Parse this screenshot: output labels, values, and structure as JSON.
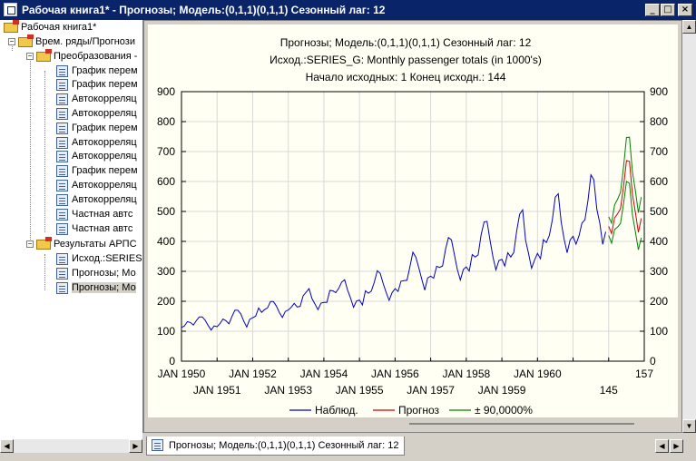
{
  "window": {
    "title": "Рабочая книга1* - Прогнозы; Модель:(0,1,1)(0,1,1) Сезонный лаг: 12",
    "min": "_",
    "max": "□",
    "close": "×"
  },
  "tree": {
    "root": "Рабочая книга1*",
    "group1": "Врем. ряды/Прогнози",
    "group2": "Преобразования -",
    "items": [
      "График перем",
      "График перем",
      "Автокорреляц",
      "Автокорреляц",
      "График перем",
      "Автокорреляц",
      "Автокорреляц",
      "График перем",
      "Автокорреляц",
      "Автокорреляц",
      "Частная автс",
      "Частная автс"
    ],
    "group3": "Результаты АРПС",
    "results": [
      "Исход.:SERIES",
      "Прогнозы; Мо",
      "Прогнозы; Мо"
    ]
  },
  "tab": {
    "label": "Прогнозы; Модель:(0,1,1)(0,1,1) Сезонный лаг: 12"
  },
  "chart_data": {
    "type": "line",
    "title": [
      "Прогнозы; Модель:(0,1,1)(0,1,1) Сезонный лаг: 12",
      "Исход.:SERIES_G: Monthly passenger totals (in 1000's)",
      "Начало исходных: 1        Конец исходн.: 144"
    ],
    "ylim": [
      0,
      900
    ],
    "yticks": [
      "0",
      "100",
      "200",
      "300",
      "400",
      "500",
      "600",
      "700",
      "800",
      "900"
    ],
    "xlim": [
      1,
      157
    ],
    "xticks_top": [
      "JAN 1950",
      "JAN 1952",
      "JAN 1954",
      "JAN 1956",
      "JAN 1958",
      "JAN 1960",
      "157"
    ],
    "xticks_bottom": [
      "JAN 1951",
      "JAN 1953",
      "JAN 1955",
      "JAN 1957",
      "JAN 1959",
      "145"
    ],
    "legend": [
      "Наблюд.",
      "Прогноз",
      "± 90,0000%"
    ],
    "colors": {
      "observed": "#0000c0",
      "forecast": "#d00000",
      "band": "#008000"
    },
    "observed": [
      112,
      118,
      132,
      129,
      121,
      135,
      148,
      148,
      136,
      119,
      104,
      118,
      115,
      126,
      141,
      135,
      125,
      149,
      170,
      170,
      158,
      133,
      114,
      140,
      145,
      150,
      178,
      163,
      172,
      178,
      199,
      199,
      184,
      162,
      146,
      166,
      171,
      180,
      193,
      181,
      183,
      218,
      230,
      242,
      209,
      191,
      172,
      194,
      196,
      196,
      236,
      235,
      229,
      243,
      264,
      272,
      237,
      211,
      180,
      201,
      204,
      188,
      235,
      227,
      234,
      264,
      302,
      293,
      259,
      229,
      203,
      229,
      242,
      233,
      267,
      269,
      270,
      315,
      364,
      347,
      312,
      274,
      237,
      278,
      284,
      277,
      317,
      313,
      318,
      374,
      413,
      405,
      355,
      306,
      271,
      306,
      315,
      301,
      356,
      348,
      355,
      422,
      465,
      467,
      404,
      347,
      305,
      336,
      340,
      318,
      362,
      348,
      363,
      435,
      491,
      505,
      404,
      359,
      310,
      337,
      360,
      342,
      406,
      396,
      420,
      472,
      548,
      559,
      463,
      407,
      362,
      405,
      417,
      391,
      419,
      461,
      472,
      535,
      622,
      606,
      508,
      461,
      390,
      432
    ],
    "forecast": [
      450,
      426,
      479,
      492,
      509,
      583,
      670,
      667,
      558,
      497,
      430,
      477
    ],
    "lower": [
      420,
      394,
      440,
      448,
      460,
      525,
      600,
      594,
      490,
      432,
      372,
      412
    ],
    "upper": [
      482,
      461,
      522,
      541,
      564,
      647,
      747,
      748,
      633,
      570,
      496,
      548
    ]
  }
}
